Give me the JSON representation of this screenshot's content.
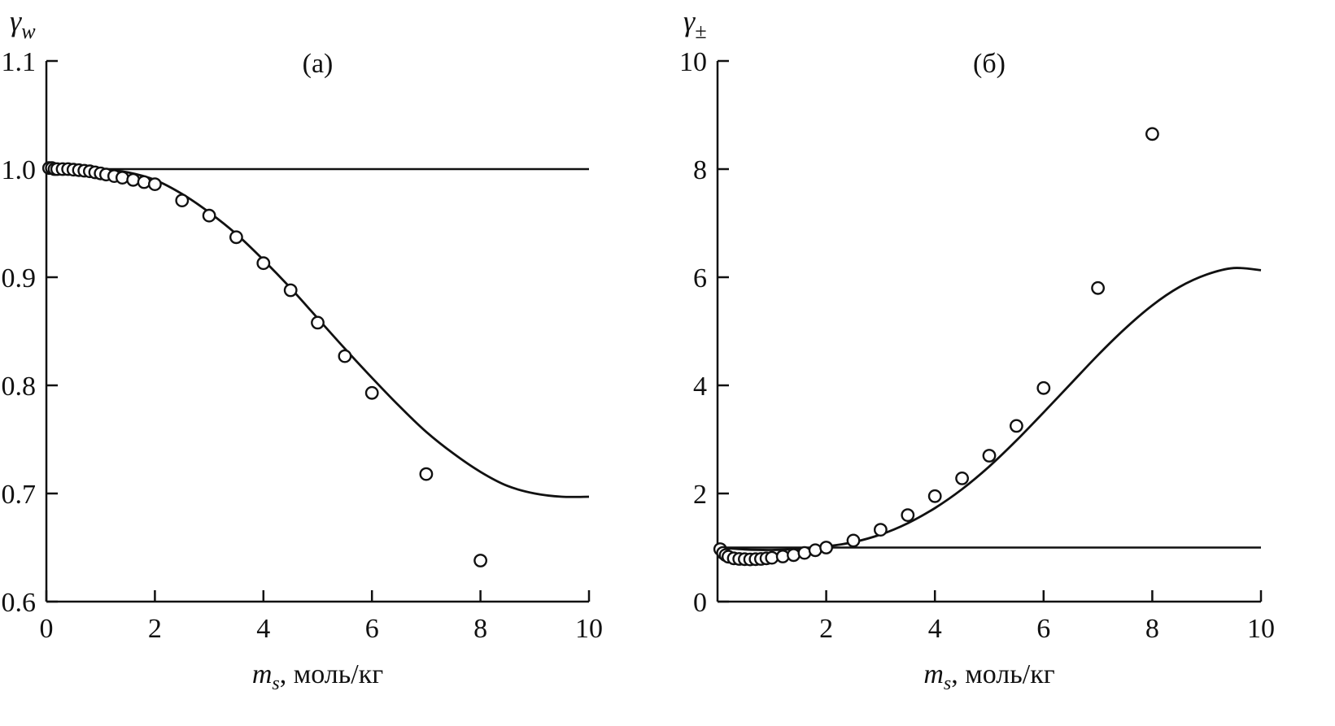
{
  "figure": {
    "background": "#ffffff",
    "line_color": "#111111"
  },
  "chart_data": [
    {
      "type": "line",
      "panel_label": "(а)",
      "y_axis_symbol": {
        "base": "γ",
        "sub": "w"
      },
      "x_axis_label": {
        "italic": "m",
        "sub": "s",
        "rest": ", моль/кг"
      },
      "xlim": [
        0,
        10
      ],
      "ylim": [
        0.6,
        1.1
      ],
      "x_ticks": [
        0,
        2,
        4,
        6,
        8,
        10
      ],
      "x_tick_labels": [
        "0",
        "2",
        "4",
        "6",
        "8",
        "10"
      ],
      "y_ticks": [
        0.6,
        0.7,
        0.8,
        0.9,
        1.0,
        1.1
      ],
      "y_tick_labels": [
        "0.6",
        "0.7",
        "0.8",
        "0.9",
        "1.0",
        "1.1"
      ],
      "grid": false,
      "legend": "none",
      "reference_line_y": 1.0,
      "model_curve": {
        "x": [
          0,
          0.5,
          1.0,
          1.5,
          2.0,
          2.5,
          3.0,
          3.5,
          4.0,
          4.5,
          5.0,
          5.5,
          6.0,
          6.5,
          7.0,
          7.5,
          8.0,
          8.5,
          9.0,
          9.5,
          10.0
        ],
        "y": [
          1.0,
          1.0,
          1.0,
          0.997,
          0.99,
          0.977,
          0.96,
          0.94,
          0.916,
          0.89,
          0.862,
          0.834,
          0.807,
          0.781,
          0.757,
          0.737,
          0.72,
          0.707,
          0.7,
          0.697,
          0.697
        ]
      },
      "experimental_points": {
        "x": [
          0.05,
          0.1,
          0.15,
          0.2,
          0.3,
          0.4,
          0.5,
          0.6,
          0.7,
          0.8,
          0.9,
          1.0,
          1.1,
          1.25,
          1.4,
          1.6,
          1.8,
          2.0,
          2.5,
          3.0,
          3.5,
          4.0,
          4.5,
          5.0,
          5.5,
          6.0,
          7.0,
          8.0
        ],
        "y": [
          1.001,
          1.001,
          1.0,
          1.0,
          1.0,
          1.0,
          0.9995,
          0.999,
          0.9985,
          0.998,
          0.997,
          0.996,
          0.995,
          0.9935,
          0.992,
          0.99,
          0.988,
          0.986,
          0.971,
          0.957,
          0.937,
          0.913,
          0.888,
          0.858,
          0.827,
          0.793,
          0.718,
          0.638
        ]
      }
    },
    {
      "type": "line",
      "panel_label": "(б)",
      "y_axis_symbol": {
        "base": "γ",
        "sub": "±"
      },
      "x_axis_label": {
        "italic": "m",
        "sub": "s",
        "rest": ", моль/кг"
      },
      "xlim": [
        0,
        10
      ],
      "ylim": [
        0,
        10
      ],
      "x_ticks": [
        2,
        4,
        6,
        8,
        10
      ],
      "x_tick_labels": [
        "2",
        "4",
        "6",
        "8",
        "10"
      ],
      "y_ticks": [
        0,
        2,
        4,
        6,
        8,
        10
      ],
      "y_tick_labels": [
        "0",
        "2",
        "4",
        "6",
        "8",
        "10"
      ],
      "grid": false,
      "legend": "none",
      "reference_line_y": 1.0,
      "model_curve": {
        "x": [
          0,
          0.5,
          1.0,
          1.5,
          2.0,
          2.5,
          3.0,
          3.5,
          4.0,
          4.5,
          5.0,
          5.5,
          6.0,
          6.5,
          7.0,
          7.5,
          8.0,
          8.5,
          9.0,
          9.5,
          10.0
        ],
        "y": [
          1.0,
          0.965,
          0.955,
          0.975,
          1.02,
          1.1,
          1.24,
          1.45,
          1.73,
          2.08,
          2.5,
          2.98,
          3.5,
          4.03,
          4.56,
          5.05,
          5.48,
          5.82,
          6.05,
          6.17,
          6.13
        ]
      },
      "experimental_points": {
        "x": [
          0.05,
          0.1,
          0.15,
          0.2,
          0.3,
          0.4,
          0.5,
          0.6,
          0.7,
          0.8,
          0.9,
          1.0,
          1.2,
          1.4,
          1.6,
          1.8,
          2.0,
          2.5,
          3.0,
          3.5,
          4.0,
          4.5,
          5.0,
          5.5,
          6.0,
          7.0,
          8.0
        ],
        "y": [
          0.97,
          0.9,
          0.86,
          0.83,
          0.8,
          0.79,
          0.785,
          0.78,
          0.785,
          0.79,
          0.8,
          0.81,
          0.835,
          0.86,
          0.9,
          0.95,
          1.0,
          1.13,
          1.33,
          1.6,
          1.95,
          2.28,
          2.7,
          3.25,
          3.95,
          5.8,
          8.65
        ]
      }
    }
  ]
}
